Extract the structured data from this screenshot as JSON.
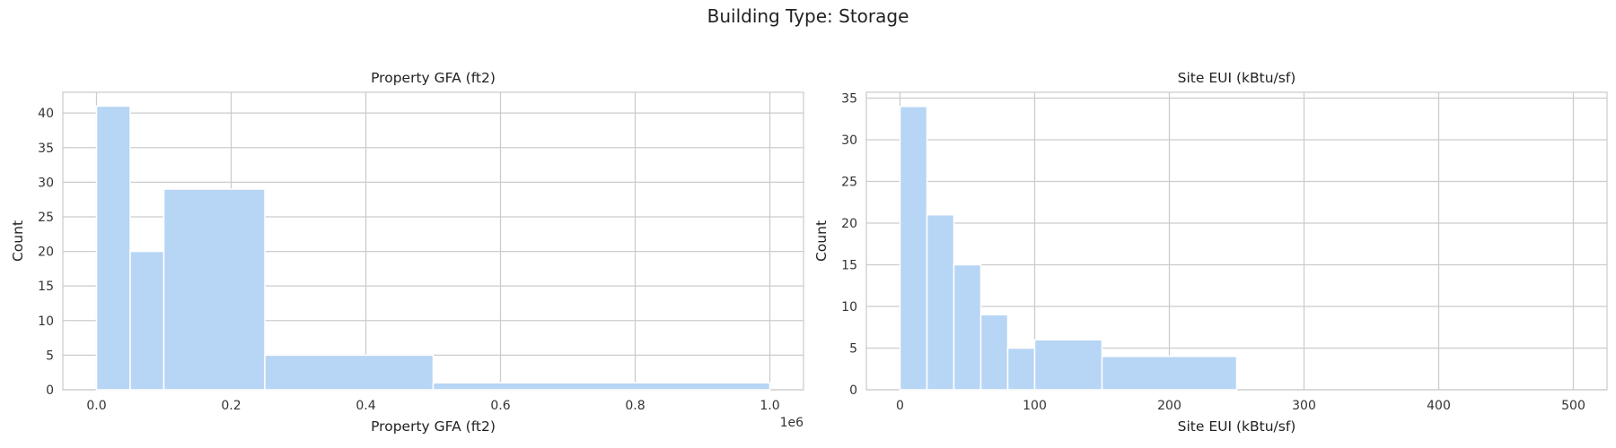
{
  "figure_title": "Building Type: Storage",
  "chart_data": [
    {
      "type": "bar",
      "title": "Property GFA (ft2)",
      "xlabel": "Property GFA (ft2)",
      "ylabel": "Count",
      "x_offset_label": "1e6",
      "xlim": [
        -0.05,
        1.05
      ],
      "ylim": [
        0,
        43
      ],
      "xticks": [
        0.0,
        0.2,
        0.4,
        0.6,
        0.8,
        1.0
      ],
      "xtick_labels": [
        "0.0",
        "0.2",
        "0.4",
        "0.6",
        "0.8",
        "1.0"
      ],
      "yticks": [
        0,
        5,
        10,
        15,
        20,
        25,
        30,
        35,
        40
      ],
      "ytick_labels": [
        "0",
        "5",
        "10",
        "15",
        "20",
        "25",
        "30",
        "35",
        "40"
      ],
      "grid": true,
      "bins": [
        {
          "x0": 0.0,
          "x1": 0.05,
          "count": 41
        },
        {
          "x0": 0.05,
          "x1": 0.1,
          "count": 20
        },
        {
          "x0": 0.1,
          "x1": 0.25,
          "count": 29
        },
        {
          "x0": 0.25,
          "x1": 0.5,
          "count": 5
        },
        {
          "x0": 0.5,
          "x1": 1.0,
          "count": 1
        }
      ]
    },
    {
      "type": "bar",
      "title": "Site EUI (kBtu/sf)",
      "xlabel": "Site EUI (kBtu/sf)",
      "ylabel": "Count",
      "x_offset_label": "",
      "xlim": [
        -25,
        525
      ],
      "ylim": [
        0,
        35.7
      ],
      "xticks": [
        0,
        100,
        200,
        300,
        400,
        500
      ],
      "xtick_labels": [
        "0",
        "100",
        "200",
        "300",
        "400",
        "500"
      ],
      "yticks": [
        0,
        5,
        10,
        15,
        20,
        25,
        30,
        35
      ],
      "ytick_labels": [
        "0",
        "5",
        "10",
        "15",
        "20",
        "25",
        "30",
        "35"
      ],
      "grid": true,
      "bins": [
        {
          "x0": 0,
          "x1": 20,
          "count": 34
        },
        {
          "x0": 20,
          "x1": 40,
          "count": 21
        },
        {
          "x0": 40,
          "x1": 60,
          "count": 15
        },
        {
          "x0": 60,
          "x1": 80,
          "count": 9
        },
        {
          "x0": 80,
          "x1": 100,
          "count": 5
        },
        {
          "x0": 100,
          "x1": 150,
          "count": 6
        },
        {
          "x0": 150,
          "x1": 250,
          "count": 4
        },
        {
          "x0": 250,
          "x1": 500,
          "count": 0
        }
      ]
    }
  ]
}
